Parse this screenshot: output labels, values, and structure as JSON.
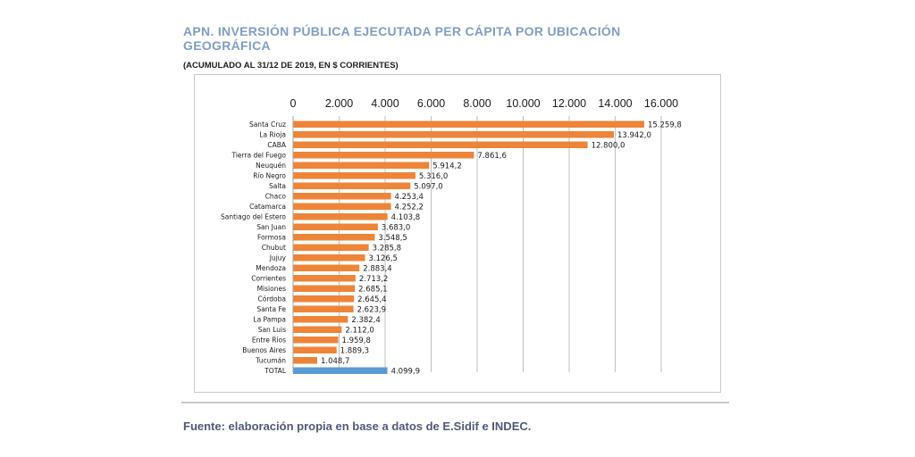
{
  "title": "APN. INVERSIÓN PÚBLICA EJECUTADA PER CÁPITA POR UBICACIÓN GEOGRÁFICA",
  "subtitle": "(ACUMULADO AL 31/12 DE 2019, EN $ CORRIENTES)",
  "source": "Fuente: elaboración propia en base a datos de E.Sidif e INDEC.",
  "colors": {
    "bar": "#ee8438",
    "total_bar": "#5b9bd5",
    "grid": "#bfbfbf",
    "title": "#7f9dc6"
  },
  "chart_data": {
    "type": "bar",
    "orientation": "horizontal",
    "title": "",
    "xlabel": "",
    "ylabel": "",
    "xlim": [
      0,
      16000
    ],
    "xticks": [
      0,
      2000,
      4000,
      6000,
      8000,
      10000,
      12000,
      14000,
      16000
    ],
    "xtick_labels": [
      "0",
      "2.000",
      "4.000",
      "6.000",
      "8.000",
      "10.000",
      "12.000",
      "14.000",
      "16.000"
    ],
    "axis_position": "top",
    "grid": true,
    "categories": [
      "Santa Cruz",
      "La Rioja",
      "CABA",
      "Tierra del Fuego",
      "Neuquén",
      "Río Negro",
      "Salta",
      "Chaco",
      "Catamarca",
      "Santiago del Estero",
      "San Juan",
      "Formosa",
      "Chubut",
      "Jujuy",
      "Mendoza",
      "Corrientes",
      "Misiones",
      "Córdoba",
      "Santa Fe",
      "La Pampa",
      "San Luis",
      "Entre Ríos",
      "Buenos Aires",
      "Tucumán",
      "TOTAL"
    ],
    "values": [
      15259.8,
      13942.0,
      12800.0,
      7861.6,
      5914.2,
      5316.0,
      5097.0,
      4253.4,
      4252.2,
      4103.8,
      3683.0,
      3548.5,
      3285.8,
      3126.5,
      2883.4,
      2713.2,
      2685.1,
      2645.4,
      2623.9,
      2382.4,
      2112.0,
      1959.8,
      1889.3,
      1048.7,
      4099.9
    ],
    "value_labels": [
      "15.259,8",
      "13.942,0",
      "12.800,0",
      "7.861,6",
      "5.914,2",
      "5.316,0",
      "5.097,0",
      "4.253,4",
      "4.252,2",
      "4.103,8",
      "3.683,0",
      "3.548,5",
      "3.285,8",
      "3.126,5",
      "2.883,4",
      "2.713,2",
      "2.685,1",
      "2.645,4",
      "2.623,9",
      "2.382,4",
      "2.112,0",
      "1.959,8",
      "1.889,3",
      "1.048,7",
      "4.099,9"
    ],
    "highlight_category": "TOTAL"
  }
}
